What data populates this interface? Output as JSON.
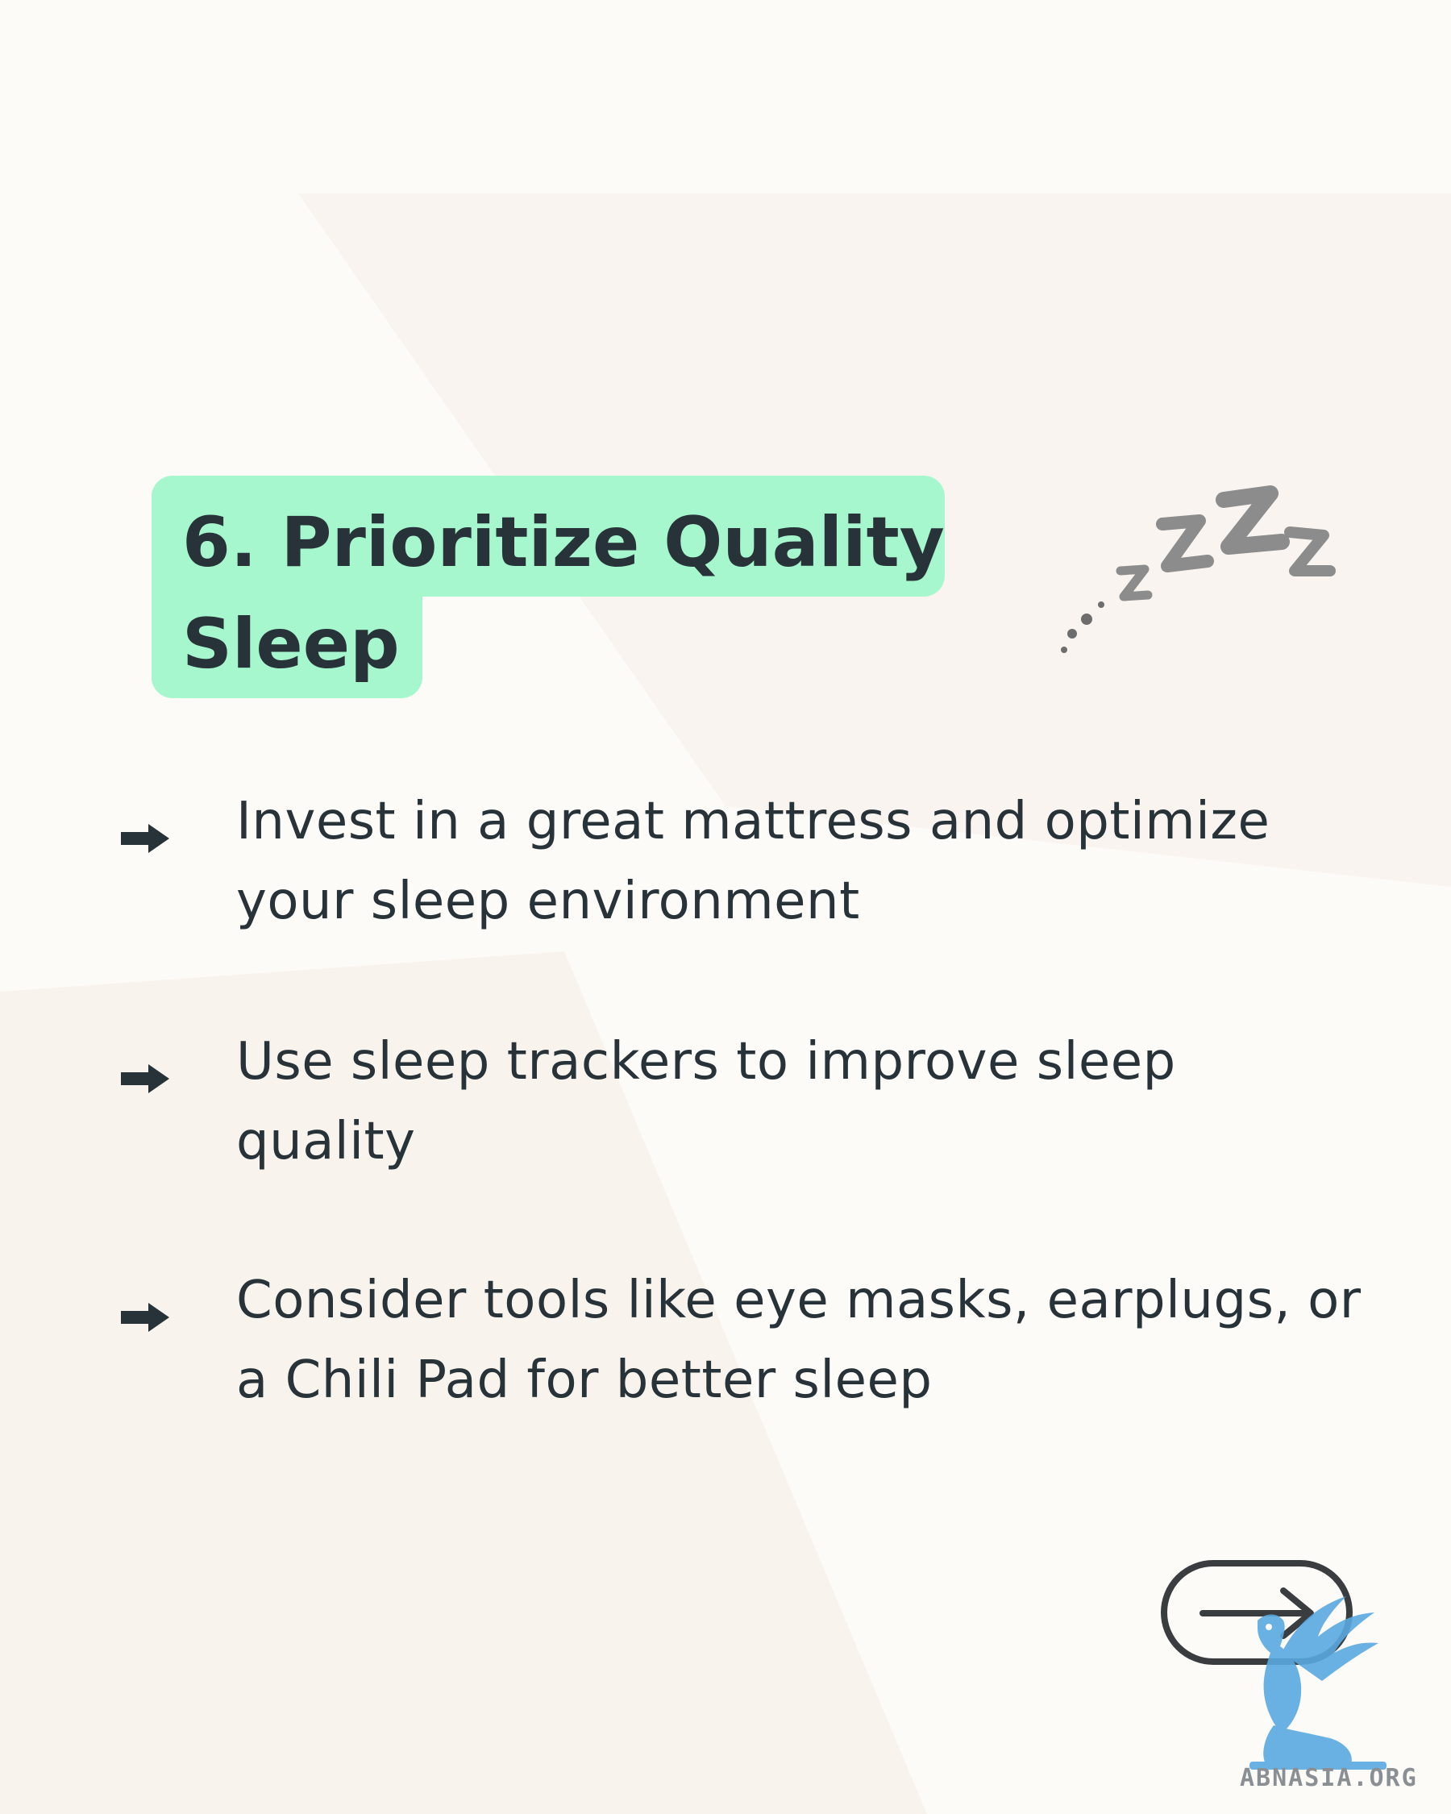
{
  "title": "6. Prioritize Quality Sleep",
  "bullets": [
    {
      "icon": "right-arrow-icon",
      "text": "Invest in a great mattress and optimize your sleep environment"
    },
    {
      "icon": "right-arrow-icon",
      "text": "Use sleep trackers to improve sleep quality"
    },
    {
      "icon": "right-arrow-icon",
      "text": "Consider tools like eye masks, earplugs, or a Chili Pad for better sleep"
    }
  ],
  "decoration": {
    "icon": "sleeping-zzz-icon"
  },
  "navigation": {
    "next_icon": "arrow-right-icon"
  },
  "watermark": {
    "text": "ABNASIA.ORG",
    "icon": "griffin-logo-icon"
  },
  "colors": {
    "background": "#fdfbf8",
    "title_highlight": "#a6f6ce",
    "text": "#283339",
    "zzz": "#8c8c8c",
    "logo_blue": "#5aa9e0"
  }
}
